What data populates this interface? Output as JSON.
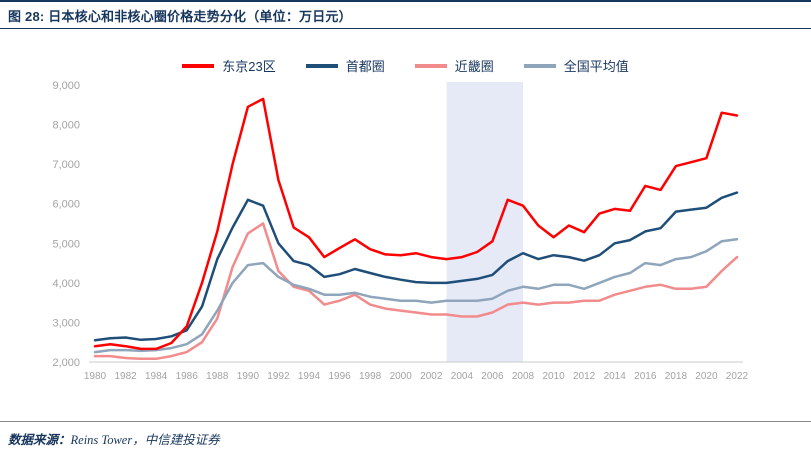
{
  "header": {
    "title": "图 28: 日本核心和非核心圈价格走势分化（单位：万日元）"
  },
  "footer": {
    "source_label": "数据来源：",
    "source_text": "Reins Tower，中信建投证券"
  },
  "colors": {
    "title_navy": "#17365D",
    "axis_label_gray": "#A3A3A3",
    "axis_line_gray": "#C9C9C9",
    "highlight_band": "#E6EAF7"
  },
  "chart_data": {
    "type": "line",
    "title": "日本核心和非核心圈价格走势分化（单位：万日元）",
    "xlabel": "",
    "ylabel": "",
    "ylim": [
      2000,
      9000
    ],
    "ytick_step": 1000,
    "xtick_step": 2,
    "grid": false,
    "legend_position": "top-center",
    "highlight_band": {
      "from": 2003,
      "to": 2008,
      "color": "#E6EAF7"
    },
    "x": [
      1980,
      1981,
      1982,
      1983,
      1984,
      1985,
      1986,
      1987,
      1988,
      1989,
      1990,
      1991,
      1992,
      1993,
      1994,
      1995,
      1996,
      1997,
      1998,
      1999,
      2000,
      2001,
      2002,
      2003,
      2004,
      2005,
      2006,
      2007,
      2008,
      2009,
      2010,
      2011,
      2012,
      2013,
      2014,
      2015,
      2016,
      2017,
      2018,
      2019,
      2020,
      2021,
      2022
    ],
    "series": [
      {
        "id": "tokyo23",
        "name": "东京23区",
        "color": "#FF0000",
        "values": [
          2400,
          2450,
          2400,
          2330,
          2330,
          2480,
          2900,
          4000,
          5300,
          7000,
          8450,
          8650,
          6600,
          5400,
          5150,
          4650,
          4880,
          5100,
          4850,
          4720,
          4700,
          4750,
          4650,
          4600,
          4650,
          4780,
          5050,
          6100,
          5950,
          5450,
          5150,
          5450,
          5280,
          5750,
          5870,
          5820,
          6450,
          6350,
          6950,
          7050,
          7150,
          8300,
          8230
        ]
      },
      {
        "id": "shutoken",
        "name": "首都圈",
        "color": "#1F4E79",
        "values": [
          2550,
          2600,
          2620,
          2560,
          2580,
          2650,
          2800,
          3400,
          4600,
          5400,
          6100,
          5950,
          5000,
          4550,
          4450,
          4150,
          4220,
          4350,
          4250,
          4150,
          4080,
          4020,
          4000,
          4000,
          4050,
          4100,
          4200,
          4550,
          4750,
          4600,
          4700,
          4650,
          4560,
          4700,
          5000,
          5080,
          5300,
          5380,
          5800,
          5850,
          5900,
          6150,
          6280
        ]
      },
      {
        "id": "kinki",
        "name": "近畿圈",
        "color": "#F28B8B",
        "values": [
          2150,
          2150,
          2100,
          2080,
          2080,
          2150,
          2250,
          2500,
          3100,
          4400,
          5250,
          5500,
          4300,
          3900,
          3800,
          3450,
          3550,
          3700,
          3450,
          3350,
          3300,
          3250,
          3200,
          3200,
          3150,
          3150,
          3250,
          3450,
          3500,
          3450,
          3500,
          3500,
          3550,
          3550,
          3700,
          3800,
          3900,
          3950,
          3850,
          3850,
          3900,
          4300,
          4650
        ]
      },
      {
        "id": "national",
        "name": "全国平均值",
        "color": "#8EA5BB",
        "values": [
          2250,
          2300,
          2300,
          2280,
          2300,
          2350,
          2450,
          2700,
          3300,
          4000,
          4450,
          4500,
          4150,
          3950,
          3850,
          3700,
          3700,
          3750,
          3650,
          3600,
          3550,
          3550,
          3500,
          3550,
          3550,
          3550,
          3600,
          3800,
          3900,
          3850,
          3950,
          3950,
          3850,
          4000,
          4150,
          4250,
          4500,
          4450,
          4600,
          4650,
          4800,
          5050,
          5100
        ]
      }
    ]
  }
}
